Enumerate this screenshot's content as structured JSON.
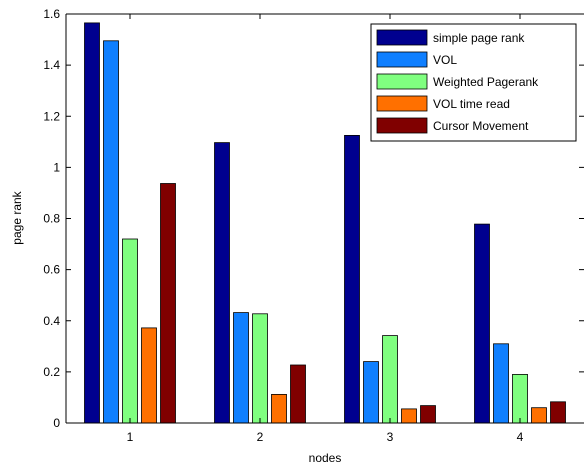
{
  "chart_data": {
    "type": "bar",
    "title": "",
    "xlabel": "nodes",
    "ylabel": "page rank",
    "categories": [
      "1",
      "2",
      "3",
      "4"
    ],
    "ylim": [
      0,
      1.6
    ],
    "yticks": [
      "0",
      "0.2",
      "0.4",
      "0.6",
      "0.8",
      "1",
      "1.2",
      "1.4",
      "1.6"
    ],
    "grid": false,
    "legend_position": "top-right",
    "series": [
      {
        "name": "simple page rank",
        "color": "#00008F",
        "values": [
          1.565,
          1.097,
          1.125,
          0.778
        ]
      },
      {
        "name": "VOL",
        "color": "#0F7FFF",
        "values": [
          1.495,
          0.432,
          0.24,
          0.31
        ]
      },
      {
        "name": "Weighted Pagerank",
        "color": "#80FF80",
        "values": [
          0.72,
          0.427,
          0.342,
          0.19
        ]
      },
      {
        "name": "VOL time read",
        "color": "#FF7000",
        "values": [
          0.372,
          0.112,
          0.055,
          0.06
        ]
      },
      {
        "name": "Cursor Movement",
        "color": "#800000",
        "values": [
          0.937,
          0.227,
          0.068,
          0.083
        ]
      }
    ]
  }
}
